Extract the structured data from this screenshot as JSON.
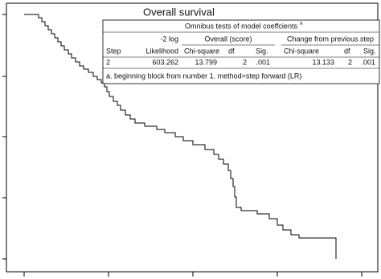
{
  "title": "Overall survival",
  "table": {
    "caption": "Omnibus tests of model coeffcients",
    "caption_note": "a",
    "header": {
      "step": "Step",
      "loglik_top": "-2 log",
      "loglik": "Likelihood",
      "group1": "Overall (score)",
      "group2": "Change from previous step",
      "columns": [
        "Chi-square",
        "df",
        "Sig.",
        "Chi-square",
        "df",
        "Sig."
      ]
    },
    "rows": [
      [
        "2",
        "603.262",
        "13.799",
        "2",
        ".001",
        "13.133",
        "2",
        ".001"
      ]
    ],
    "footnote": "a. beginning block from number 1. method=step forward (LR)"
  }
}
